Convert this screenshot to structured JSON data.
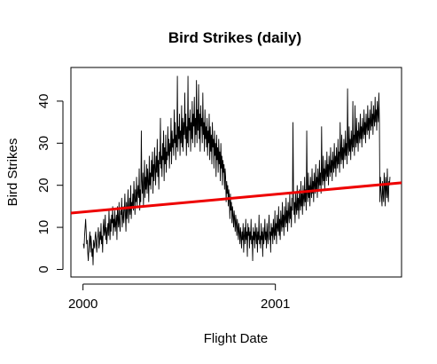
{
  "chart_data": {
    "type": "line",
    "title": "Bird Strikes (daily)",
    "xlabel": "Flight Date",
    "ylabel": "Bird Strikes",
    "x_ticks": [
      "2000",
      "2001"
    ],
    "y_ticks": [
      0,
      10,
      20,
      30,
      40
    ],
    "xlim": [
      "1999-12-09",
      "2001-08-29"
    ],
    "ylim": [
      -1.8,
      48
    ],
    "grid": false,
    "legend": "none",
    "colors": {
      "series": "#000000",
      "trend": "#ee0000"
    },
    "series": [
      {
        "date_start": "2000-01-01",
        "date_end": "2001-08-07",
        "values": [
          6,
          6,
          5,
          8,
          10,
          12,
          9,
          6,
          7,
          4,
          2,
          5,
          7,
          9,
          4,
          8,
          6,
          3,
          5,
          1,
          7,
          6,
          5,
          8,
          9,
          6,
          4,
          7,
          8,
          10,
          5,
          6,
          9,
          7,
          11,
          6,
          8,
          4,
          10,
          12,
          8,
          9,
          13,
          7,
          10,
          6,
          9,
          11,
          8,
          14,
          10,
          7,
          12,
          9,
          13,
          11,
          15,
          8,
          12,
          10,
          14,
          9,
          11,
          13,
          7,
          15,
          12,
          10,
          16,
          11,
          9,
          14,
          13,
          17,
          10,
          12,
          15,
          11,
          14,
          18,
          13,
          9,
          16,
          12,
          15,
          19,
          11,
          14,
          17,
          13,
          20,
          12,
          16,
          15,
          18,
          14,
          21,
          17,
          13,
          19,
          16,
          22,
          15,
          18,
          20,
          17,
          24,
          14,
          19,
          16,
          33,
          21,
          18,
          23,
          15,
          20,
          26,
          17,
          22,
          19,
          25,
          18,
          24,
          21,
          16,
          27,
          20,
          23,
          19,
          26,
          22,
          28,
          18,
          25,
          21,
          29,
          24,
          20,
          27,
          23,
          31,
          22,
          26,
          19,
          28,
          25,
          36,
          24,
          27,
          22,
          30,
          26,
          33,
          21,
          29,
          25,
          32,
          23,
          28,
          26,
          34,
          27,
          31,
          24,
          30,
          28,
          36,
          25,
          33,
          29,
          31,
          27,
          38,
          30,
          35,
          26,
          32,
          29,
          46,
          28,
          34,
          31,
          37,
          27,
          33,
          30,
          39,
          29,
          36,
          28,
          35,
          32,
          42,
          31,
          37,
          27,
          34,
          30,
          46,
          29,
          36,
          33,
          38,
          28,
          35,
          31,
          40,
          30,
          37,
          34,
          41,
          29,
          36,
          32,
          45,
          30,
          38,
          33,
          44,
          31,
          37,
          28,
          39,
          34,
          36,
          30,
          42,
          32,
          35,
          28,
          38,
          31,
          34,
          29,
          36,
          27,
          33,
          30,
          37,
          26,
          34,
          28,
          32,
          25,
          35,
          29,
          31,
          24,
          33,
          27,
          30,
          22,
          32,
          26,
          29,
          23,
          31,
          25,
          28,
          21,
          30,
          24,
          27,
          20,
          26,
          23,
          25,
          19,
          24,
          22,
          16,
          21,
          18,
          20,
          15,
          19,
          17,
          12,
          18,
          14,
          16,
          11,
          15,
          13,
          10,
          14,
          12,
          9,
          13,
          11,
          8,
          12,
          10,
          7,
          11,
          9,
          6,
          10,
          8,
          5,
          9,
          7,
          11,
          4,
          8,
          10,
          6,
          12,
          7,
          9,
          3,
          11,
          8,
          10,
          5,
          9,
          7,
          12,
          6,
          8,
          2,
          10,
          7,
          9,
          5,
          11,
          8,
          6,
          10,
          4,
          9,
          7,
          13,
          6,
          8,
          5,
          11,
          7,
          9,
          3,
          10,
          6,
          8,
          12,
          7,
          9,
          5,
          11,
          8,
          6,
          10,
          13,
          7,
          9,
          4,
          11,
          8,
          10,
          6,
          12,
          9,
          7,
          14,
          8,
          11,
          6,
          13,
          10,
          9,
          15,
          8,
          12,
          7,
          14,
          11,
          9,
          16,
          10,
          13,
          8,
          15,
          12,
          10,
          17,
          11,
          14,
          9,
          16,
          13,
          11,
          18,
          12,
          15,
          10,
          17,
          14,
          35,
          19,
          13,
          16,
          11,
          18,
          15,
          13,
          20,
          14,
          17,
          12,
          19,
          16,
          14,
          21,
          15,
          18,
          13,
          20,
          17,
          15,
          22,
          16,
          19,
          14,
          33,
          18,
          16,
          23,
          17,
          20,
          15,
          22,
          19,
          17,
          24,
          18,
          21,
          16,
          23,
          20,
          18,
          25,
          19,
          22,
          17,
          24,
          21,
          19,
          26,
          20,
          23,
          18,
          34,
          22,
          20,
          27,
          21,
          24,
          19,
          26,
          23,
          21,
          28,
          22,
          25,
          20,
          27,
          24,
          22,
          29,
          23,
          26,
          21,
          28,
          25,
          23,
          30,
          24,
          27,
          22,
          29,
          26,
          24,
          31,
          25,
          28,
          23,
          35,
          27,
          25,
          32,
          26,
          29,
          24,
          31,
          28,
          26,
          33,
          27,
          30,
          25,
          43,
          29,
          27,
          34,
          28,
          31,
          26,
          33,
          30,
          28,
          40,
          29,
          32,
          27,
          39,
          31,
          29,
          36,
          30,
          33,
          28,
          35,
          32,
          30,
          37,
          31,
          34,
          29,
          36,
          33,
          31,
          38,
          32,
          35,
          30,
          37,
          34,
          32,
          39,
          33,
          36,
          31,
          38,
          35,
          33,
          40,
          34,
          37,
          32,
          39,
          36,
          34,
          41,
          35,
          38,
          33,
          40,
          37,
          35,
          42,
          36,
          16,
          22,
          19,
          17,
          15,
          21,
          18,
          16,
          23,
          20,
          15,
          22,
          19,
          17,
          24,
          18,
          16,
          21,
          20,
          22
        ]
      },
      {
        "name": "trend",
        "points": [
          [
            "1999-12-09",
            13.4
          ],
          [
            "2001-08-29",
            20.6
          ]
        ]
      }
    ]
  }
}
